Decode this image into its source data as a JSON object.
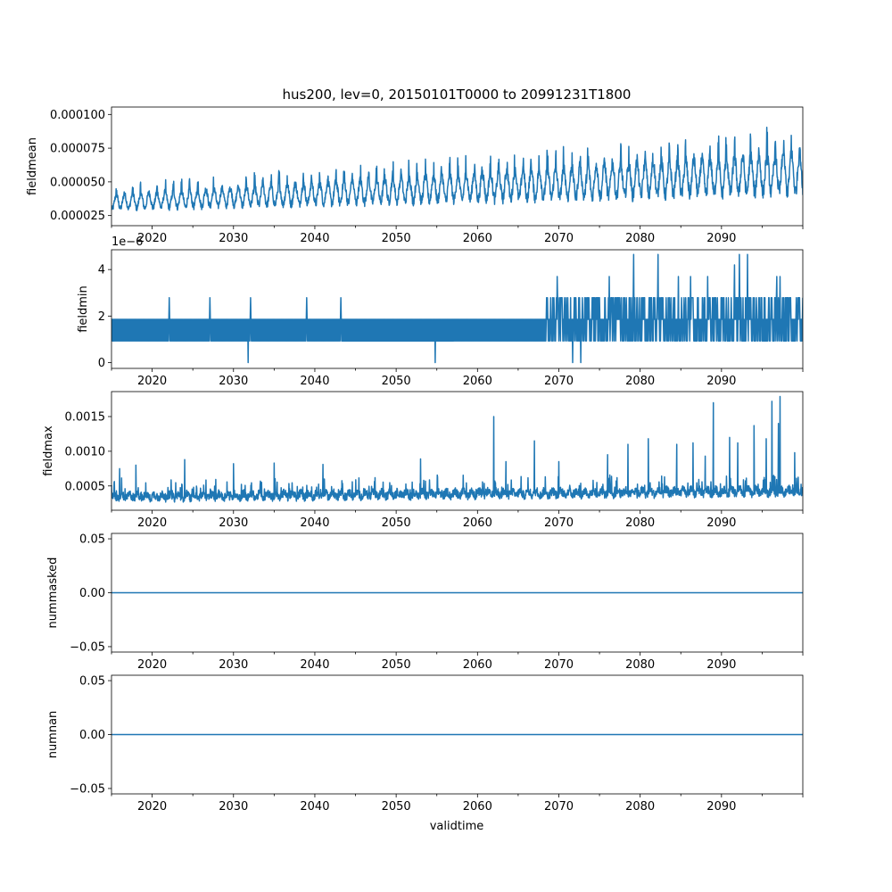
{
  "title": "hus200, lev=0, 20150101T0000 to 20991231T1800",
  "colors": {
    "line": "#1f77b4",
    "axes": "#000000",
    "background": "#ffffff"
  },
  "chart_data": [
    {
      "type": "line",
      "ylabel": "fieldmean",
      "xlim": [
        "2015-01-01",
        "2099-12-31"
      ],
      "ylim": [
        1.75e-05,
        0.0001055
      ],
      "yticks": [
        "0.000025",
        "0.000050",
        "0.000075",
        "0.000100"
      ],
      "ytick_values": [
        2.5e-05,
        5e-05,
        7.5e-05,
        0.0001
      ],
      "xticks": [
        "2020",
        "2030",
        "2040",
        "2050",
        "2060",
        "2070",
        "2080",
        "2090"
      ],
      "pattern": "seasonal",
      "series": [
        {
          "base_start": 3.5e-05,
          "base_end": 5.7e-05,
          "amp_start": 5e-06,
          "amp_end": 1.4e-05,
          "floor_start": 2.2e-05,
          "noise": 3.5e-06
        }
      ]
    },
    {
      "type": "line",
      "ylabel": "fieldmin",
      "offset_text": "1e−6",
      "xlim": [
        "2015-01-01",
        "2099-12-31"
      ],
      "ylim": [
        -0.25,
        4.85
      ],
      "yticks": [
        "0",
        "2",
        "4"
      ],
      "ytick_values": [
        0,
        2,
        4
      ],
      "xticks": [
        "2020",
        "2030",
        "2040",
        "2050",
        "2060",
        "2070",
        "2080",
        "2090"
      ],
      "pattern": "quantized",
      "series": [
        {
          "levels": [
            0.93,
            1.86,
            2.79,
            4.65
          ],
          "spikes": [
            {
              "x": 2022.1,
              "y": 2.79
            },
            {
              "x": 2027.1,
              "y": 2.79
            },
            {
              "x": 2031.8,
              "y": 0
            },
            {
              "x": 2032.1,
              "y": 2.79
            },
            {
              "x": 2039.0,
              "y": 2.79
            },
            {
              "x": 2043.2,
              "y": 2.79
            },
            {
              "x": 2054.8,
              "y": 0
            },
            {
              "x": 2071.7,
              "y": 0
            },
            {
              "x": 2072.7,
              "y": 0
            },
            {
              "x": 2079.2,
              "y": 4.65
            },
            {
              "x": 2082.2,
              "y": 4.65
            },
            {
              "x": 2092.2,
              "y": 4.65
            },
            {
              "x": 2093.2,
              "y": 4.65
            },
            {
              "x": 2091.6,
              "y": 4.2
            },
            {
              "x": 2084.7,
              "y": 3.7
            },
            {
              "x": 2096.8,
              "y": 3.7
            },
            {
              "x": 2076.2,
              "y": 3.7
            },
            {
              "x": 2088.3,
              "y": 3.7
            },
            {
              "x": 2086.2,
              "y": 3.7
            },
            {
              "x": 2097.2,
              "y": 3.7
            },
            {
              "x": 2069.8,
              "y": 3.7
            }
          ]
        }
      ]
    },
    {
      "type": "line",
      "ylabel": "fieldmax",
      "xlim": [
        "2015-01-01",
        "2099-12-31"
      ],
      "ylim": [
        0.00015,
        0.00186
      ],
      "yticks": [
        "0.0005",
        "0.0010",
        "0.0015"
      ],
      "ytick_values": [
        0.0005,
        0.001,
        0.0015
      ],
      "xticks": [
        "2020",
        "2030",
        "2040",
        "2050",
        "2060",
        "2070",
        "2080",
        "2090"
      ],
      "pattern": "noisy",
      "series": [
        {
          "base_start": 0.00034,
          "base_end": 0.00042,
          "band": 0.00012,
          "spikes": [
            {
              "x": 2016.0,
              "y": 0.00075
            },
            {
              "x": 2018.0,
              "y": 0.0008
            },
            {
              "x": 2024.0,
              "y": 0.00088
            },
            {
              "x": 2030.0,
              "y": 0.00082
            },
            {
              "x": 2035.0,
              "y": 0.00083
            },
            {
              "x": 2041.0,
              "y": 0.00081
            },
            {
              "x": 2053.0,
              "y": 0.00089
            },
            {
              "x": 2062.0,
              "y": 0.0015
            },
            {
              "x": 2063.5,
              "y": 0.00085
            },
            {
              "x": 2067.0,
              "y": 0.00115
            },
            {
              "x": 2070.0,
              "y": 0.00085
            },
            {
              "x": 2076.0,
              "y": 0.00095
            },
            {
              "x": 2078.5,
              "y": 0.0011
            },
            {
              "x": 2081.0,
              "y": 0.00118
            },
            {
              "x": 2084.5,
              "y": 0.0011
            },
            {
              "x": 2086.5,
              "y": 0.00112
            },
            {
              "x": 2088.0,
              "y": 0.00093
            },
            {
              "x": 2089.0,
              "y": 0.0017
            },
            {
              "x": 2091.0,
              "y": 0.0012
            },
            {
              "x": 2092.0,
              "y": 0.00112
            },
            {
              "x": 2094.0,
              "y": 0.00137
            },
            {
              "x": 2095.5,
              "y": 0.00118
            },
            {
              "x": 2096.2,
              "y": 0.00172
            },
            {
              "x": 2097.2,
              "y": 0.00179
            },
            {
              "x": 2097.0,
              "y": 0.0014
            },
            {
              "x": 2099.0,
              "y": 0.00098
            }
          ]
        }
      ]
    },
    {
      "type": "line",
      "ylabel": "nummasked",
      "xlim": [
        "2015-01-01",
        "2099-12-31"
      ],
      "ylim": [
        -0.055,
        0.055
      ],
      "yticks": [
        "−0.05",
        "0.00",
        "0.05"
      ],
      "ytick_values": [
        -0.05,
        0,
        0.05
      ],
      "xticks": [
        "2020",
        "2030",
        "2040",
        "2050",
        "2060",
        "2070",
        "2080",
        "2090"
      ],
      "pattern": "constant",
      "series": [
        {
          "value": 0
        }
      ]
    },
    {
      "type": "line",
      "ylabel": "numnan",
      "xlabel": "validtime",
      "xlim": [
        "2015-01-01",
        "2099-12-31"
      ],
      "ylim": [
        -0.055,
        0.055
      ],
      "yticks": [
        "−0.05",
        "0.00",
        "0.05"
      ],
      "ytick_values": [
        -0.05,
        0,
        0.05
      ],
      "xticks": [
        "2020",
        "2030",
        "2040",
        "2050",
        "2060",
        "2070",
        "2080",
        "2090"
      ],
      "pattern": "constant",
      "series": [
        {
          "value": 0
        }
      ]
    }
  ]
}
